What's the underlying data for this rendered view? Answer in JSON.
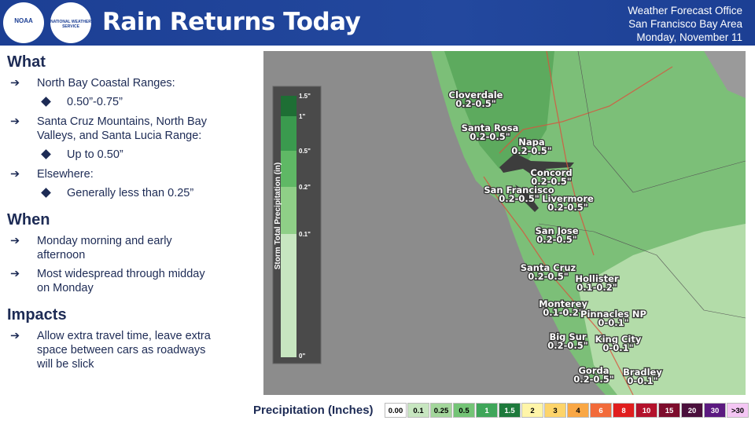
{
  "header": {
    "title": "Rain Returns Today",
    "logos": [
      "NOAA",
      "NATIONAL WEATHER SERVICE"
    ],
    "office": [
      "Weather Forecast Office",
      "San Francisco Bay Area",
      "Monday, November 11"
    ]
  },
  "sections": [
    {
      "heading": "What",
      "items": [
        {
          "text": "North Bay Coastal Ranges:",
          "sub": [
            "0.50”-0.75”"
          ]
        },
        {
          "text": "Santa Cruz Mountains, North Bay Valleys, and Santa Lucia Range:",
          "sub": [
            "Up to 0.50”"
          ]
        },
        {
          "text": "Elsewhere:",
          "sub": [
            "Generally less than 0.25”"
          ]
        }
      ]
    },
    {
      "heading": "When",
      "items": [
        {
          "text": "Monday morning and early afternoon",
          "sub": []
        },
        {
          "text": "Most widespread through midday on Monday",
          "sub": []
        }
      ]
    },
    {
      "heading": "Impacts",
      "items": [
        {
          "text": "Allow extra travel time, leave extra space between cars as roadways will be slick",
          "sub": []
        }
      ]
    }
  ],
  "map": {
    "inset": {
      "title": "Storm Total Precipitation (in)",
      "ticks": [
        "1.5\"",
        "1\"",
        "0.5\"",
        "0.2\"",
        "0.1\"",
        "0\""
      ]
    },
    "cities": [
      {
        "name": "Cloverdale",
        "range": "0.2-0.5\""
      },
      {
        "name": "Santa Rosa",
        "range": "0.2-0.5\""
      },
      {
        "name": "Napa",
        "range": "0.2-0.5\""
      },
      {
        "name": "Concord",
        "range": "0.2-0.5\""
      },
      {
        "name": "San Francisco",
        "range": "0.2-0.5\""
      },
      {
        "name": "Livermore",
        "range": "0.2-0.5\""
      },
      {
        "name": "San Jose",
        "range": "0.2-0.5\""
      },
      {
        "name": "Santa Cruz",
        "range": "0.2-0.5\""
      },
      {
        "name": "Hollister",
        "range": "0.1-0.2\""
      },
      {
        "name": "Monterey",
        "range": "0.1-0.2\""
      },
      {
        "name": "Pinnacles NP",
        "range": "0-0.1\""
      },
      {
        "name": "Big Sur",
        "range": "0.2-0.5\""
      },
      {
        "name": "King City",
        "range": "0-0.1\""
      },
      {
        "name": "Gorda",
        "range": "0.2-0.5\""
      },
      {
        "name": "Bradley",
        "range": "0-0.1\""
      }
    ]
  },
  "legend": {
    "title": "Precipitation (Inches)",
    "bins": [
      {
        "label": "0.00",
        "color": "#ffffff"
      },
      {
        "label": "0.1",
        "color": "#c7e6c0"
      },
      {
        "label": "0.25",
        "color": "#a3d69b"
      },
      {
        "label": "0.5",
        "color": "#74c476"
      },
      {
        "label": "1",
        "color": "#3fa65a"
      },
      {
        "label": "1.5",
        "color": "#1e7a3c"
      },
      {
        "label": "2",
        "color": "#fff5a8"
      },
      {
        "label": "3",
        "color": "#fdd46a"
      },
      {
        "label": "4",
        "color": "#f9a745"
      },
      {
        "label": "6",
        "color": "#f26b3a"
      },
      {
        "label": "8",
        "color": "#e01e1e"
      },
      {
        "label": "10",
        "color": "#b3122c"
      },
      {
        "label": "15",
        "color": "#7d0c2c"
      },
      {
        "label": "20",
        "color": "#4a0f3c"
      },
      {
        "label": "30",
        "color": "#5b1a80"
      },
      {
        "label": ">30",
        "color": "#f4c6f4"
      }
    ]
  }
}
